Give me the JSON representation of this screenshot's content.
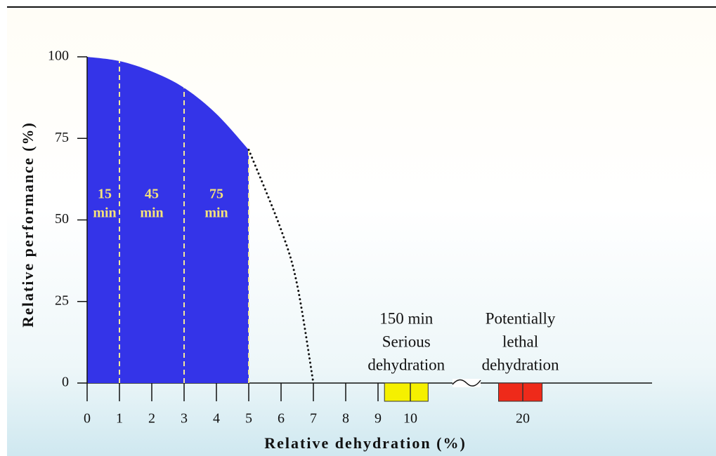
{
  "chart_data": {
    "type": "area",
    "xlabel": "Relative dehydration (%)",
    "ylabel": "Relative performance (%)",
    "xlim": [
      0,
      24
    ],
    "ylim": [
      0,
      100
    ],
    "xticks": [
      0,
      1,
      2,
      3,
      4,
      5,
      6,
      7,
      8,
      9,
      10,
      20
    ],
    "yticks": [
      0,
      25,
      50,
      75,
      100
    ],
    "axis_break": [
      11,
      19
    ],
    "color": "#3434e8",
    "curve": {
      "x": [
        0,
        1,
        2,
        3,
        4,
        5
      ],
      "y": [
        100,
        98.7,
        95.5,
        90.5,
        82.5,
        71.5
      ]
    },
    "extension": {
      "x": [
        5,
        6,
        6.5,
        7
      ],
      "y": [
        71.5,
        47,
        30,
        0
      ]
    },
    "intervals": [
      {
        "x": [
          0,
          1
        ],
        "label": [
          "15",
          "min"
        ]
      },
      {
        "x": [
          1,
          3
        ],
        "label": [
          "45",
          "min"
        ]
      },
      {
        "x": [
          3,
          5
        ],
        "label": [
          "75",
          "min"
        ]
      }
    ],
    "zones": [
      {
        "x": [
          9.2,
          10.55
        ],
        "color": "#f5f000",
        "label": [
          "150 min",
          "Serious",
          "dehydration"
        ]
      },
      {
        "x": [
          19.25,
          20.6
        ],
        "color": "#ee2a1a",
        "label": [
          "Potentially",
          "lethal",
          "dehydration"
        ]
      }
    ]
  }
}
